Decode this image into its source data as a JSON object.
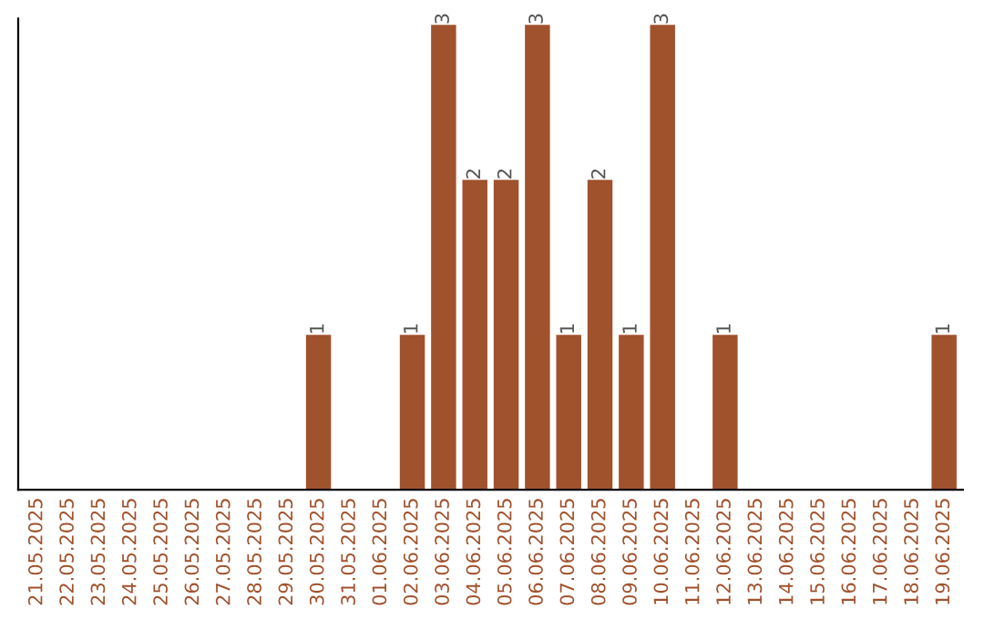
{
  "chart_data": {
    "type": "bar",
    "categories": [
      "21.05.2025",
      "22.05.2025",
      "23.05.2025",
      "24.05.2025",
      "25.05.2025",
      "26.05.2025",
      "27.05.2025",
      "28.05.2025",
      "29.05.2025",
      "30.05.2025",
      "31.05.2025",
      "01.06.2025",
      "02.06.2025",
      "03.06.2025",
      "04.06.2025",
      "05.06.2025",
      "06.06.2025",
      "07.06.2025",
      "08.06.2025",
      "09.06.2025",
      "10.06.2025",
      "11.06.2025",
      "12.06.2025",
      "13.06.2025",
      "14.06.2025",
      "15.06.2025",
      "16.06.2025",
      "17.06.2025",
      "18.06.2025",
      "19.06.2025"
    ],
    "values": [
      0,
      0,
      0,
      0,
      0,
      0,
      0,
      0,
      0,
      1,
      0,
      0,
      1,
      3,
      2,
      2,
      3,
      1,
      2,
      1,
      3,
      0,
      1,
      0,
      0,
      0,
      0,
      0,
      0,
      1
    ],
    "value_labels": [
      null,
      null,
      null,
      null,
      null,
      null,
      null,
      null,
      null,
      "1",
      null,
      null,
      "1",
      "3",
      "2",
      "2",
      "3",
      "1",
      "2",
      "1",
      "3",
      null,
      "1",
      null,
      null,
      null,
      null,
      null,
      null,
      "1"
    ],
    "color": "#a0522d",
    "ylim": [
      0,
      3.04
    ],
    "tick_labels": "x",
    "grid": false
  }
}
